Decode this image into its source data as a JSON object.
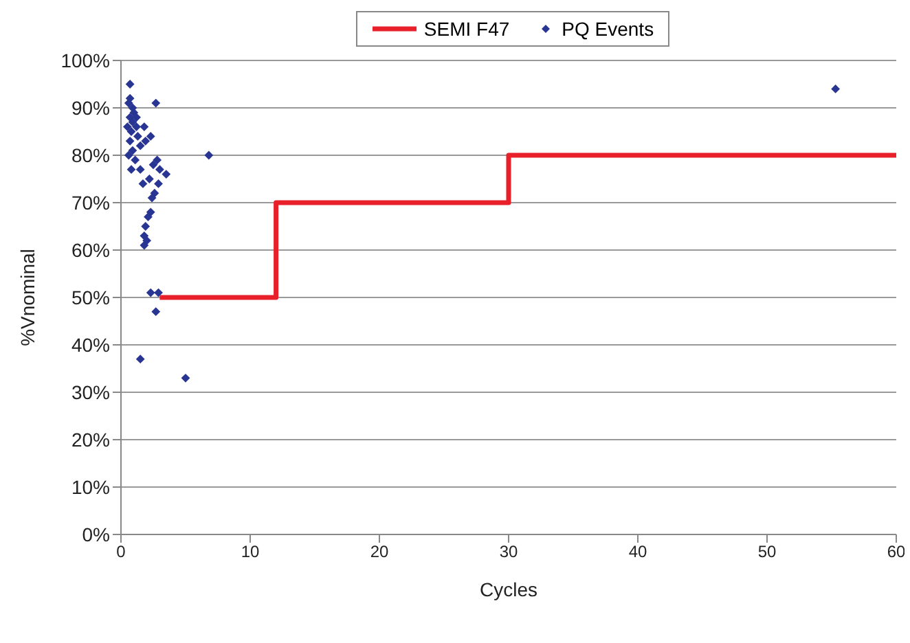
{
  "chart_data": {
    "type": "scatter",
    "xlabel": "Cycles",
    "ylabel": "%Vnominal",
    "xlim": [
      0,
      60
    ],
    "xticks": [
      0,
      10,
      20,
      30,
      40,
      50,
      60
    ],
    "ylim": [
      0,
      100
    ],
    "yticks": [
      {
        "value": 0,
        "label": "0%"
      },
      {
        "value": 10,
        "label": "10%"
      },
      {
        "value": 20,
        "label": "20%"
      },
      {
        "value": 30,
        "label": "30%"
      },
      {
        "value": 40,
        "label": "40%"
      },
      {
        "value": 50,
        "label": "50%"
      },
      {
        "value": 60,
        "label": "60%"
      },
      {
        "value": 70,
        "label": "70%"
      },
      {
        "value": 80,
        "label": "80%"
      },
      {
        "value": 90,
        "label": "90%"
      },
      {
        "value": 100,
        "label": "100%"
      }
    ],
    "grid": "y",
    "legend": "top",
    "series": [
      {
        "name": "SEMI F47",
        "type": "step",
        "color": "#e8202a",
        "x": [
          3,
          12,
          30,
          60
        ],
        "values": [
          50,
          70,
          80,
          80
        ]
      },
      {
        "name": "PQ Events",
        "color": "#283593",
        "marker": "diamond",
        "x": [
          0.7,
          0.7,
          0.6,
          0.9,
          1.0,
          0.7,
          0.9,
          1.2,
          0.8,
          1.3,
          0.7,
          1.5,
          0.9,
          0.6,
          1.1,
          0.8,
          2.7,
          1.8,
          2.3,
          1.9,
          1.5,
          1.7,
          2.5,
          2.8,
          3.0,
          3.5,
          2.2,
          2.9,
          2.6,
          2.4,
          6.8,
          2.3,
          2.1,
          1.9,
          1.8,
          2.0,
          1.8,
          2.3,
          2.9,
          2.7,
          1.5,
          5.0,
          55.3,
          1.2,
          0.5
        ],
        "values": [
          95,
          92,
          91,
          90,
          89,
          88,
          87,
          86,
          85,
          84,
          83,
          82,
          81,
          80,
          79,
          77,
          91,
          86,
          84,
          83,
          77,
          74,
          78,
          79,
          77,
          76,
          75,
          74,
          72,
          71,
          80,
          68,
          67,
          65,
          63,
          62,
          61,
          51,
          51,
          47,
          37,
          33,
          94,
          88,
          86
        ]
      }
    ]
  }
}
